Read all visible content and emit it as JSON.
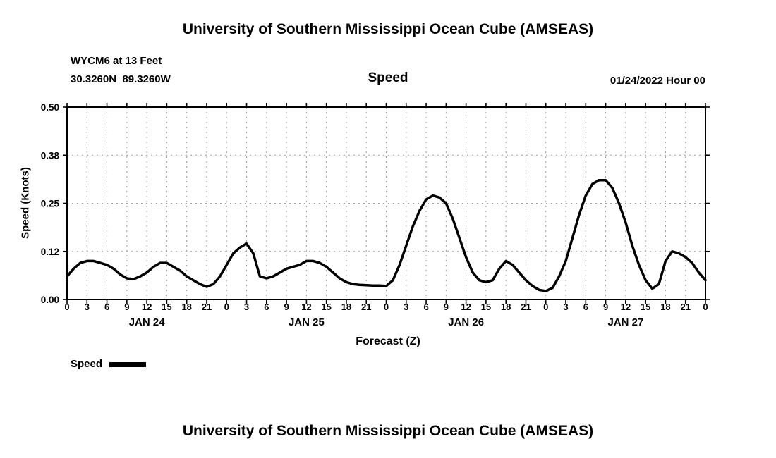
{
  "page": {
    "title_top": "University of Southern Mississippi Ocean Cube (AMSEAS)",
    "title_bottom": "University of Southern Mississippi Ocean Cube (AMSEAS)",
    "station_line1": "WYCM6 at 13 Feet",
    "station_line2": "30.3260N  89.3260W",
    "datetime_label": "01/24/2022 Hour 00",
    "legend_label": "Speed"
  },
  "chart_data": {
    "type": "line",
    "title": "Speed",
    "xlabel": "Forecast (Z)",
    "ylabel": "Speed (Knots)",
    "xlim": [
      0,
      96
    ],
    "ylim": [
      0,
      0.5
    ],
    "ytick_values": [
      0,
      0.125,
      0.25,
      0.375,
      0.5
    ],
    "ytick_labels": [
      "0.00",
      "0.12",
      "0.25",
      "0.38",
      "0.50"
    ],
    "xtick_step_hours": 3,
    "xtick_labels": [
      "0",
      "3",
      "6",
      "9",
      "12",
      "15",
      "18",
      "21",
      "0",
      "3",
      "6",
      "9",
      "12",
      "15",
      "18",
      "21",
      "0",
      "3",
      "6",
      "9",
      "12",
      "15",
      "18",
      "21",
      "0",
      "3",
      "6",
      "9",
      "12",
      "15",
      "18",
      "21",
      "0"
    ],
    "day_labels": [
      "JAN 24",
      "JAN 25",
      "JAN 26",
      "JAN 27"
    ],
    "grid": "dashed",
    "legend_position": "bottom-left",
    "line_color": "#000000",
    "series": [
      {
        "name": "Speed",
        "x": [
          0,
          1,
          2,
          3,
          4,
          5,
          6,
          7,
          8,
          9,
          10,
          11,
          12,
          13,
          14,
          15,
          16,
          17,
          18,
          19,
          20,
          21,
          22,
          23,
          24,
          25,
          26,
          27,
          28,
          29,
          30,
          31,
          32,
          33,
          34,
          35,
          36,
          37,
          38,
          39,
          40,
          41,
          42,
          43,
          44,
          45,
          46,
          47,
          48,
          49,
          50,
          51,
          52,
          53,
          54,
          55,
          56,
          57,
          58,
          59,
          60,
          61,
          62,
          63,
          64,
          65,
          66,
          67,
          68,
          69,
          70,
          71,
          72,
          73,
          74,
          75,
          76,
          77,
          78,
          79,
          80,
          81,
          82,
          83,
          84,
          85,
          86,
          87,
          88,
          89,
          90,
          91,
          92,
          93,
          94,
          95,
          96
        ],
        "values": [
          0.06,
          0.08,
          0.095,
          0.1,
          0.1,
          0.095,
          0.09,
          0.08,
          0.065,
          0.055,
          0.053,
          0.06,
          0.07,
          0.085,
          0.095,
          0.095,
          0.085,
          0.075,
          0.06,
          0.05,
          0.04,
          0.033,
          0.04,
          0.06,
          0.09,
          0.12,
          0.135,
          0.145,
          0.12,
          0.06,
          0.055,
          0.06,
          0.07,
          0.08,
          0.085,
          0.09,
          0.1,
          0.1,
          0.095,
          0.085,
          0.07,
          0.055,
          0.045,
          0.04,
          0.038,
          0.037,
          0.036,
          0.036,
          0.035,
          0.05,
          0.09,
          0.14,
          0.19,
          0.23,
          0.26,
          0.27,
          0.265,
          0.25,
          0.21,
          0.16,
          0.11,
          0.07,
          0.05,
          0.045,
          0.05,
          0.08,
          0.1,
          0.09,
          0.07,
          0.05,
          0.035,
          0.025,
          0.022,
          0.03,
          0.06,
          0.1,
          0.16,
          0.22,
          0.27,
          0.3,
          0.31,
          0.31,
          0.29,
          0.25,
          0.2,
          0.14,
          0.09,
          0.05,
          0.028,
          0.04,
          0.1,
          0.125,
          0.12,
          0.11,
          0.095,
          0.07,
          0.05
        ]
      }
    ]
  }
}
